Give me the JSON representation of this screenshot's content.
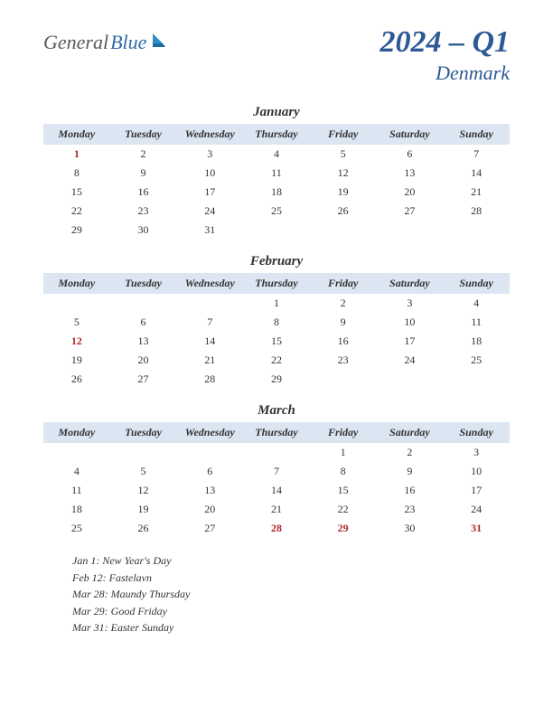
{
  "logo": {
    "text1": "General",
    "text2": "Blue",
    "color1": "#5a5a5a",
    "color2": "#2f6aa8",
    "icon_color": "#2f8fc4"
  },
  "title": {
    "main": "2024 – Q1",
    "country": "Denmark",
    "color": "#2d5a94",
    "fontsize_main": 34,
    "fontsize_country": 22
  },
  "colors": {
    "background": "#ffffff",
    "header_row_bg": "#dce5f2",
    "month_name": "#333333",
    "day_header": "#333333",
    "day_num": "#333333",
    "holiday": "#b02a2a"
  },
  "day_headers": [
    "Monday",
    "Tuesday",
    "Wednesday",
    "Thursday",
    "Friday",
    "Saturday",
    "Sunday"
  ],
  "months": [
    {
      "name": "January",
      "weeks": [
        [
          {
            "d": "1",
            "h": true
          },
          {
            "d": "2"
          },
          {
            "d": "3"
          },
          {
            "d": "4"
          },
          {
            "d": "5"
          },
          {
            "d": "6"
          },
          {
            "d": "7"
          }
        ],
        [
          {
            "d": "8"
          },
          {
            "d": "9"
          },
          {
            "d": "10"
          },
          {
            "d": "11"
          },
          {
            "d": "12"
          },
          {
            "d": "13"
          },
          {
            "d": "14"
          }
        ],
        [
          {
            "d": "15"
          },
          {
            "d": "16"
          },
          {
            "d": "17"
          },
          {
            "d": "18"
          },
          {
            "d": "19"
          },
          {
            "d": "20"
          },
          {
            "d": "21"
          }
        ],
        [
          {
            "d": "22"
          },
          {
            "d": "23"
          },
          {
            "d": "24"
          },
          {
            "d": "25"
          },
          {
            "d": "26"
          },
          {
            "d": "27"
          },
          {
            "d": "28"
          }
        ],
        [
          {
            "d": "29"
          },
          {
            "d": "30"
          },
          {
            "d": "31"
          },
          {
            "d": ""
          },
          {
            "d": ""
          },
          {
            "d": ""
          },
          {
            "d": ""
          }
        ]
      ]
    },
    {
      "name": "February",
      "weeks": [
        [
          {
            "d": ""
          },
          {
            "d": ""
          },
          {
            "d": ""
          },
          {
            "d": "1"
          },
          {
            "d": "2"
          },
          {
            "d": "3"
          },
          {
            "d": "4"
          }
        ],
        [
          {
            "d": "5"
          },
          {
            "d": "6"
          },
          {
            "d": "7"
          },
          {
            "d": "8"
          },
          {
            "d": "9"
          },
          {
            "d": "10"
          },
          {
            "d": "11"
          }
        ],
        [
          {
            "d": "12",
            "h": true
          },
          {
            "d": "13"
          },
          {
            "d": "14"
          },
          {
            "d": "15"
          },
          {
            "d": "16"
          },
          {
            "d": "17"
          },
          {
            "d": "18"
          }
        ],
        [
          {
            "d": "19"
          },
          {
            "d": "20"
          },
          {
            "d": "21"
          },
          {
            "d": "22"
          },
          {
            "d": "23"
          },
          {
            "d": "24"
          },
          {
            "d": "25"
          }
        ],
        [
          {
            "d": "26"
          },
          {
            "d": "27"
          },
          {
            "d": "28"
          },
          {
            "d": "29"
          },
          {
            "d": ""
          },
          {
            "d": ""
          },
          {
            "d": ""
          }
        ]
      ]
    },
    {
      "name": "March",
      "weeks": [
        [
          {
            "d": ""
          },
          {
            "d": ""
          },
          {
            "d": ""
          },
          {
            "d": ""
          },
          {
            "d": "1"
          },
          {
            "d": "2"
          },
          {
            "d": "3"
          }
        ],
        [
          {
            "d": "4"
          },
          {
            "d": "5"
          },
          {
            "d": "6"
          },
          {
            "d": "7"
          },
          {
            "d": "8"
          },
          {
            "d": "9"
          },
          {
            "d": "10"
          }
        ],
        [
          {
            "d": "11"
          },
          {
            "d": "12"
          },
          {
            "d": "13"
          },
          {
            "d": "14"
          },
          {
            "d": "15"
          },
          {
            "d": "16"
          },
          {
            "d": "17"
          }
        ],
        [
          {
            "d": "18"
          },
          {
            "d": "19"
          },
          {
            "d": "20"
          },
          {
            "d": "21"
          },
          {
            "d": "22"
          },
          {
            "d": "23"
          },
          {
            "d": "24"
          }
        ],
        [
          {
            "d": "25"
          },
          {
            "d": "26"
          },
          {
            "d": "27"
          },
          {
            "d": "28",
            "h": true
          },
          {
            "d": "29",
            "h": true
          },
          {
            "d": "30"
          },
          {
            "d": "31",
            "h": true
          }
        ]
      ]
    }
  ],
  "holidays_list": [
    "Jan 1: New Year's Day",
    "Feb 12: Fastelavn",
    "Mar 28: Maundy Thursday",
    "Mar 29: Good Friday",
    "Mar 31: Easter Sunday"
  ]
}
